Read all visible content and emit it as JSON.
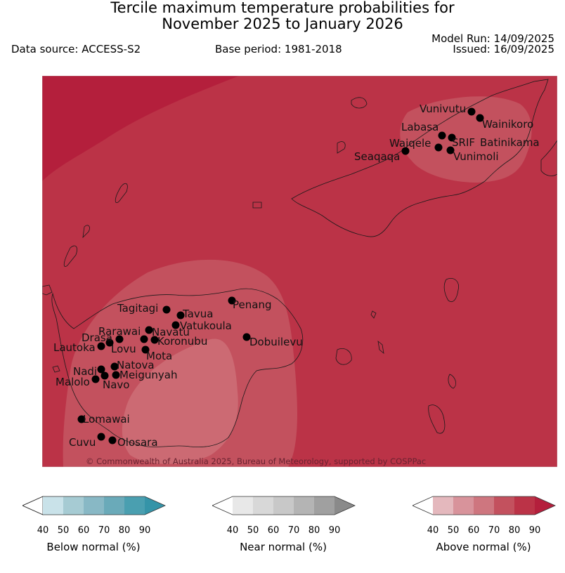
{
  "title": {
    "line1": "Tercile maximum temperature probabilities for",
    "line2": "November 2025 to January 2026"
  },
  "header": {
    "data_source": "Data source: ACCESS-S2",
    "base_period": "Base period: 1981-2018",
    "model_run": "Model Run: 14/09/2025",
    "issued": "Issued: 16/09/2025"
  },
  "map": {
    "credit": "© Commonwealth of Australia 2025, Bureau of Meteorology, supported by COSPPac",
    "stations": [
      "Vunivutu",
      "Wainikoro",
      "Labasa",
      "Waiqele",
      "SRIF",
      "Batinikama",
      "Seaqaqa",
      "Vunimoli",
      "Tagitagi",
      "Tavua",
      "Penang",
      "Vatukoula",
      "Rarawai",
      "Navatu",
      "Drasa",
      "Koronubu",
      "Dobuilevu",
      "Lautoka",
      "Lovu",
      "Mota",
      "Natova",
      "Nadi",
      "Meigunyah",
      "Malolo",
      "Navo",
      "Lomawai",
      "Cuvu",
      "Olosara"
    ],
    "colors": {
      "band_70_80": "#c3515e",
      "band_60_70": "#cc6a73",
      "band_80_90": "#b41f3c",
      "dominant": "#bb3347"
    }
  },
  "legend": {
    "below": {
      "title": "Below normal (%)",
      "ticks": [
        "40",
        "50",
        "60",
        "70",
        "80",
        "90"
      ],
      "colors": [
        "#ffffff",
        "#c9e2e9",
        "#a6cbd3",
        "#88b8c5",
        "#6aaab9",
        "#4a9fb0",
        "#3594a8"
      ]
    },
    "near": {
      "title": "Near normal (%)",
      "ticks": [
        "40",
        "50",
        "60",
        "70",
        "80",
        "90"
      ],
      "colors": [
        "#ffffff",
        "#e8e8e8",
        "#d8d8d8",
        "#c8c8c8",
        "#b4b4b4",
        "#a0a0a0",
        "#8a8a8a"
      ]
    },
    "above": {
      "title": "Above normal (%)",
      "ticks": [
        "40",
        "50",
        "60",
        "70",
        "80",
        "90"
      ],
      "colors": [
        "#ffffff",
        "#e4b8bd",
        "#d8939b",
        "#ce767f",
        "#c3515e",
        "#bb3347",
        "#b41f3c"
      ]
    }
  }
}
